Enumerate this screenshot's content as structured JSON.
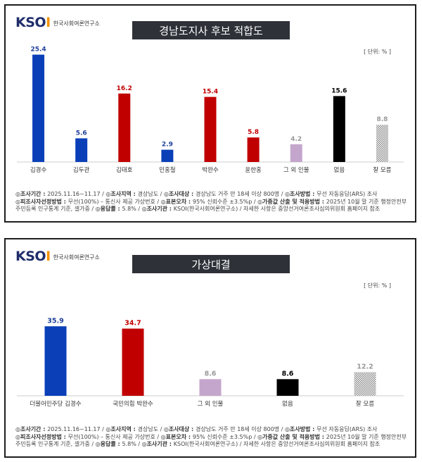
{
  "logo": {
    "mark": "KSOI",
    "name": "한국사회여론연구소"
  },
  "unit_label": "[ 단위: % ]",
  "footer": {
    "line1": [
      {
        "k": "◎조사기간",
        "v": "2025.11.16~11.17"
      },
      {
        "k": "◎조사지역",
        "v": "경상남도"
      },
      {
        "k": "◎조사대상",
        "v": "경상남도 거주 만 18세 이상 800명"
      },
      {
        "k": "◎조사방법",
        "v": "무선 자동응답(ARS) 조사"
      }
    ],
    "line2": [
      {
        "k": "◎피조사자선정방법",
        "v": "무선(100%) – 통신사 제공 가상번호"
      },
      {
        "k": "◎표본오차",
        "v": "95% 신뢰수준 ±3.5%p"
      },
      {
        "k": "◎가중값 산출 및 적용방법",
        "v": "2025년 10월 말 기준 행정안전부"
      }
    ],
    "line3": [
      {
        "k": "",
        "v": "주민등록 인구통계 기준, 셀가중"
      },
      {
        "k": "◎응답률",
        "v": "5.8%"
      },
      {
        "k": "◎조사기관",
        "v": "KSOI(한국사회여론연구소)"
      },
      {
        "k": "",
        "v": "자세한 사항은 중앙선거여론조사심의위원회 홈페이지 참조"
      }
    ]
  },
  "chart_data": [
    {
      "type": "bar",
      "title": "경남도지사 후보 적합도",
      "categories": [
        "김경수",
        "김두관",
        "김태호",
        "민홍철",
        "박완수",
        "윤한홍",
        "그 외 인물",
        "없음",
        "잘 모름"
      ],
      "values": [
        25.4,
        5.6,
        16.2,
        2.9,
        15.4,
        5.8,
        4.2,
        15.6,
        8.8
      ],
      "colors": [
        "#0a3fb8",
        "#0a3fb8",
        "#c00000",
        "#0a3fb8",
        "#c00000",
        "#c00000",
        "#c4a6cc",
        "#000000",
        "hatch"
      ],
      "label_colors": [
        "#1f3f9a",
        "#1f3f9a",
        "#c00000",
        "#1f3f9a",
        "#c00000",
        "#c00000",
        "#9a9a9a",
        "#000000",
        "#9a9a9a"
      ],
      "ylim": [
        0,
        30
      ],
      "grid": false,
      "unit": "%"
    },
    {
      "type": "bar",
      "title": "가상대결",
      "categories": [
        "더불어민주당 김경수",
        "국민의힘 박완수",
        "그 외 인물",
        "없음",
        "잘 모름"
      ],
      "values": [
        35.9,
        34.7,
        8.6,
        8.6,
        12.2
      ],
      "colors": [
        "#0a3fb8",
        "#c00000",
        "#c4a6cc",
        "#000000",
        "hatch"
      ],
      "label_colors": [
        "#1f3f9a",
        "#c00000",
        "#9a9a9a",
        "#000000",
        "#9a9a9a"
      ],
      "ylim": [
        0,
        40
      ],
      "grid": false,
      "unit": "%"
    }
  ]
}
